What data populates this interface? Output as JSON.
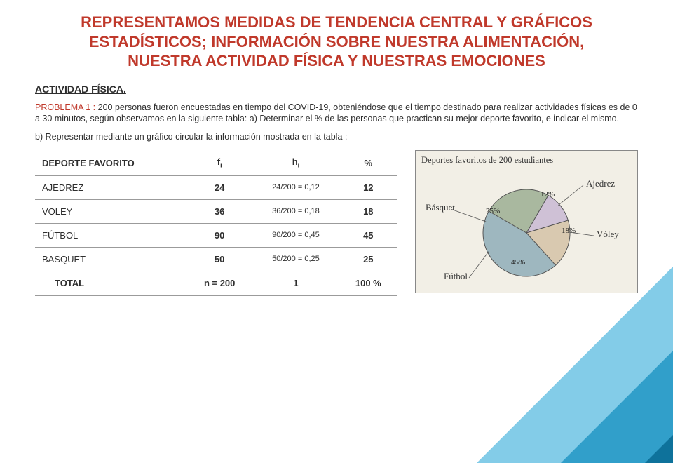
{
  "title": "REPRESENTAMOS MEDIDAS DE TENDENCIA CENTRAL Y GRÁFICOS ESTADÍSTICOS; INFORMACIÓN SOBRE NUESTRA ALIMENTACIÓN, NUESTRA ACTIVIDAD FÍSICA Y NUESTRAS EMOCIONES",
  "section_label": "ACTIVIDAD FÍSICA.",
  "problem_lead": "PROBLEMA 1 : ",
  "problem_text": "200 personas fueron encuestadas en tiempo del COVID-19, obteniéndose que el tiempo destinado para realizar actividades físicas es de 0 a 30  minutos, según observamos en la siguiente tabla: a) Determinar el % de las personas que practican su mejor deporte favorito, e indicar el mismo.",
  "part_b": "b) Representar mediante un gráfico circular la información mostrada en la tabla :",
  "table": {
    "headers": {
      "sport": "DEPORTE FAVORITO",
      "fi": "f",
      "hi": "h",
      "pct": "%"
    },
    "fi_sub": "i",
    "hi_sub": "i",
    "rows": [
      {
        "sport": "AJEDREZ",
        "fi": "24",
        "hi": "24/200 = 0,12",
        "pct": "12"
      },
      {
        "sport": "VOLEY",
        "fi": "36",
        "hi": "36/200 = 0,18",
        "pct": "18"
      },
      {
        "sport": "FÚTBOL",
        "fi": "90",
        "hi": "90/200 = 0,45",
        "pct": "45"
      },
      {
        "sport": "BASQUET",
        "fi": "50",
        "hi": "50/200 = 0,25",
        "pct": "25"
      }
    ],
    "total": {
      "label": "TOTAL",
      "fi": "n = 200",
      "hi": "1",
      "pct": "100 %"
    }
  },
  "pie": {
    "title": "Deportes favoritos de 200 estudiantes",
    "type": "pie",
    "slices": [
      {
        "label": "Ajedrez",
        "value": 12,
        "pct_label": "12%",
        "color": "#cfc1d6"
      },
      {
        "label": "Vóley",
        "value": 18,
        "pct_label": "18%",
        "color": "#d9c9b0"
      },
      {
        "label": "Fútbol",
        "value": 45,
        "pct_label": "45%",
        "color": "#9eb7bf"
      },
      {
        "label": "Básquet",
        "value": 25,
        "pct_label": "25%",
        "color": "#a9b89f"
      }
    ],
    "outline": "#555555",
    "bg": "#f2efe6",
    "title_fontsize": 12
  },
  "colors": {
    "title": "#c0392b",
    "text": "#2e2e2e",
    "table_border": "#9b9b9b"
  }
}
